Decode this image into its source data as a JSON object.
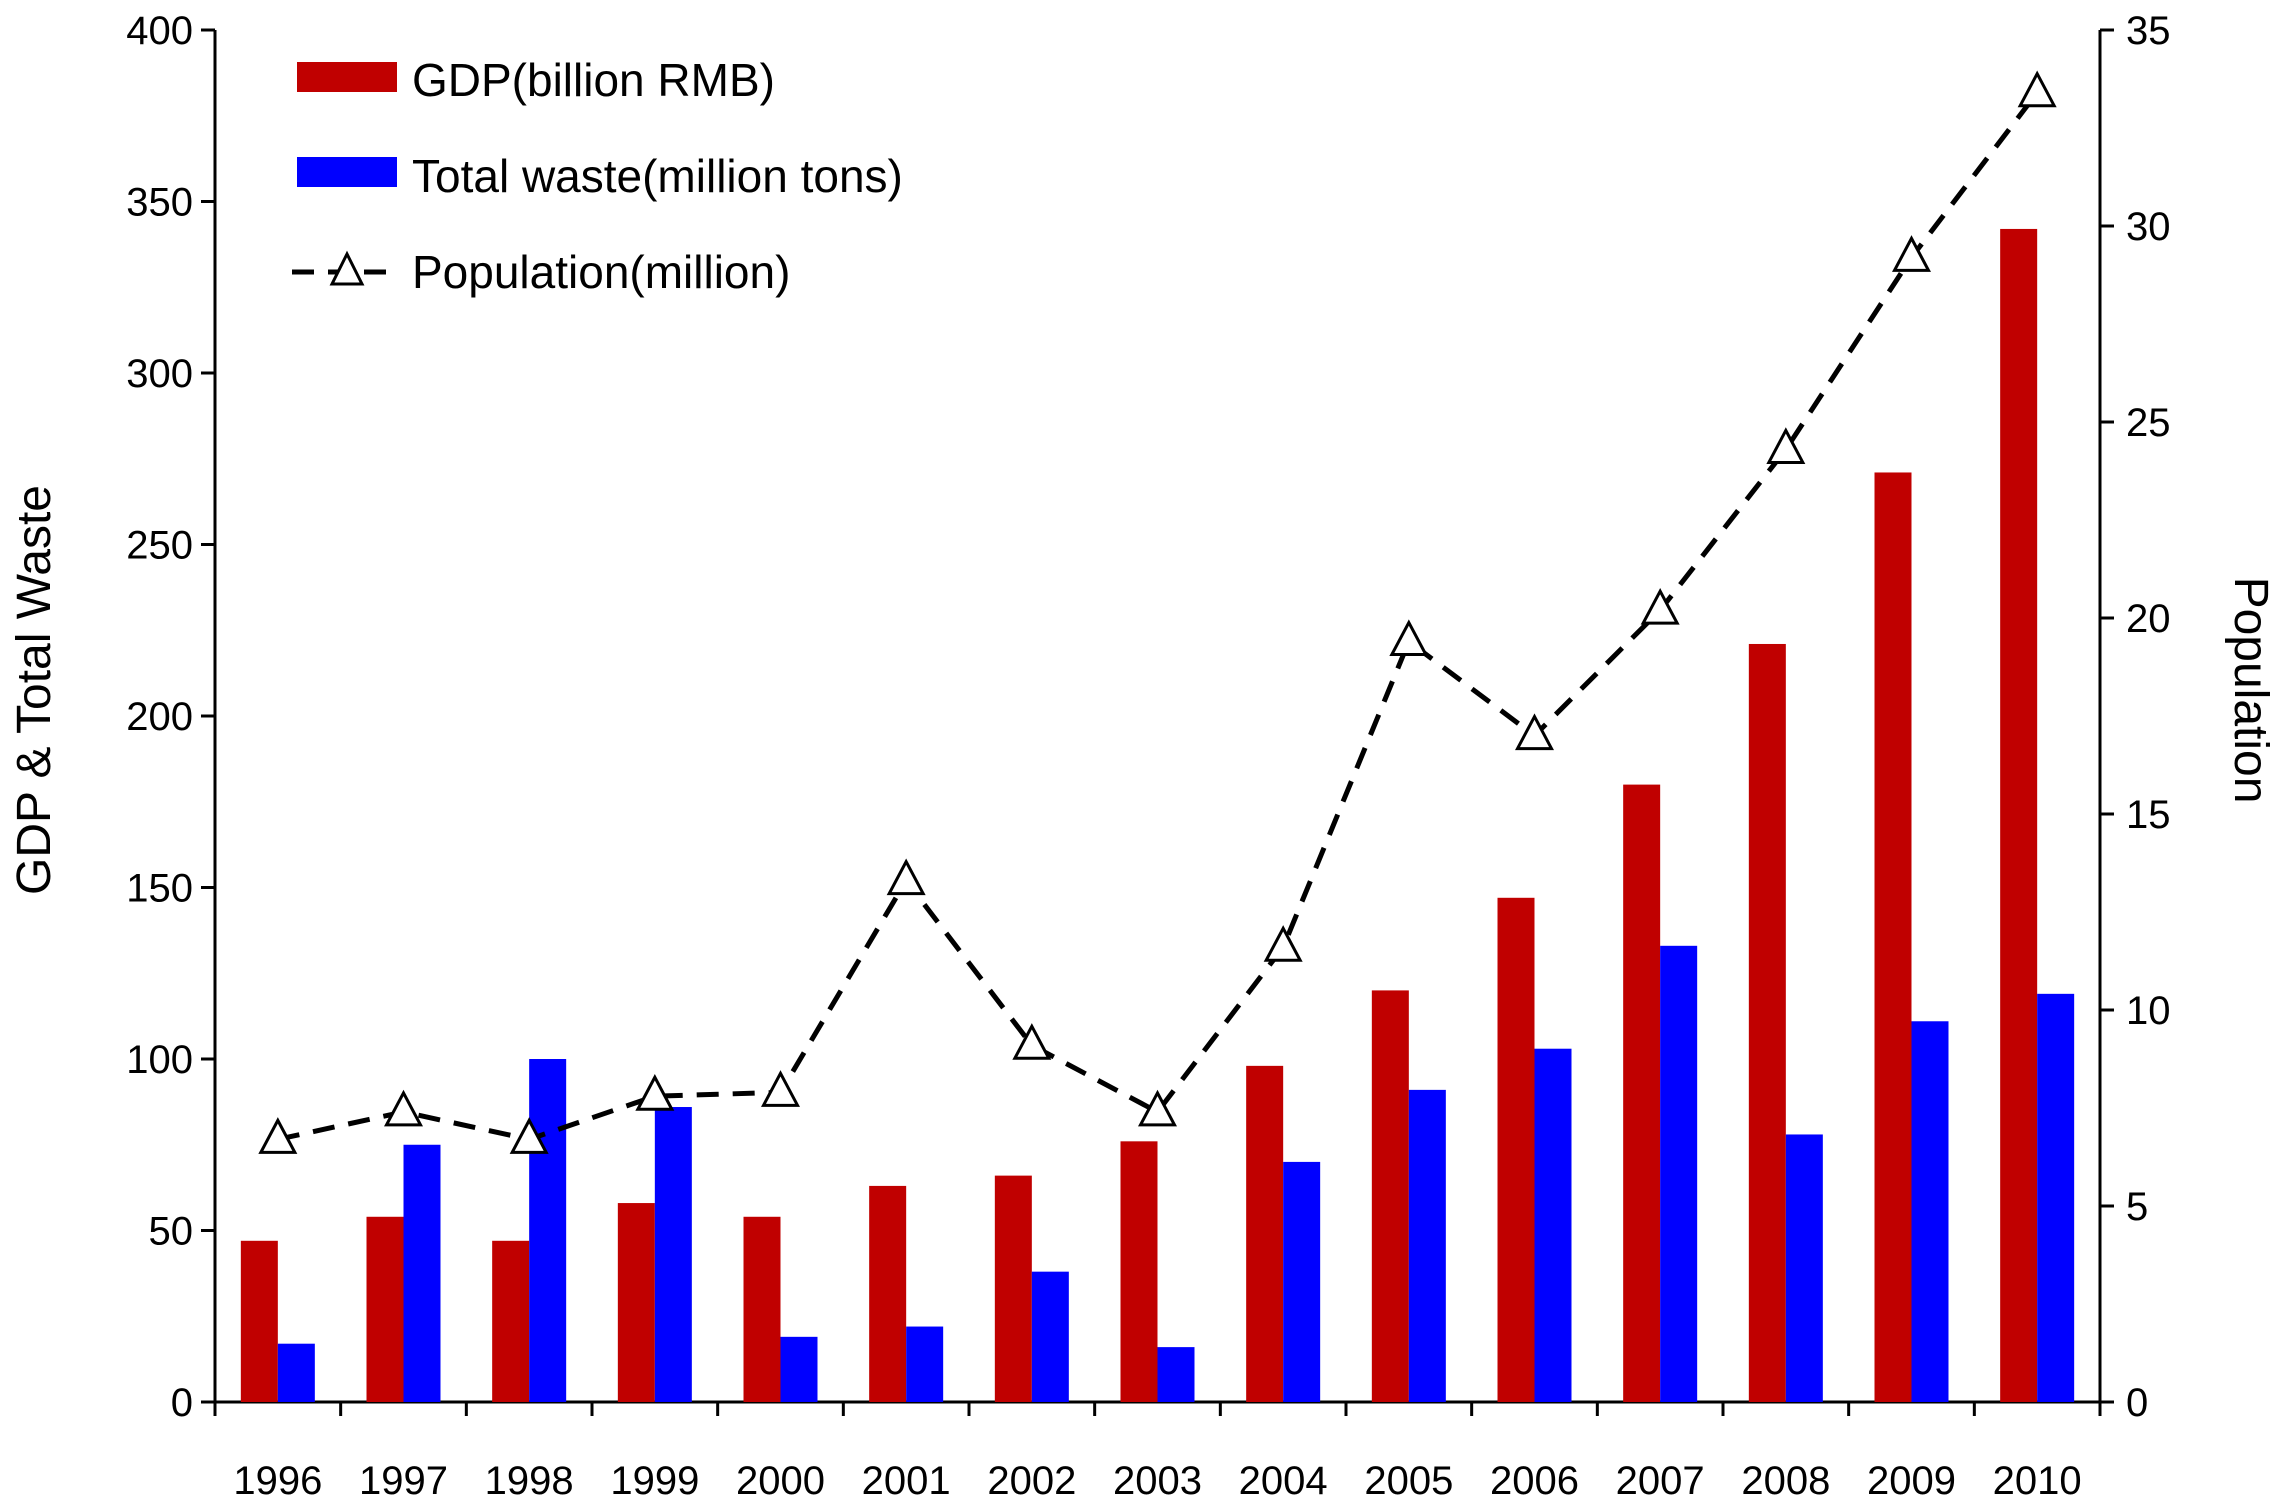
{
  "chart_data": {
    "type": "bar",
    "title": "",
    "categories": [
      "1996",
      "1997",
      "1998",
      "1999",
      "2000",
      "2001",
      "2002",
      "2003",
      "2004",
      "2005",
      "2006",
      "2007",
      "2008",
      "2009",
      "2010"
    ],
    "series": [
      {
        "name": "GDP(billion RMB)",
        "kind": "bar",
        "axis": "left",
        "color": "#c00000",
        "values": [
          47,
          54,
          47,
          58,
          54,
          63,
          66,
          76,
          98,
          120,
          147,
          180,
          221,
          271,
          342
        ]
      },
      {
        "name": "Total waste(million tons)",
        "kind": "bar",
        "axis": "left",
        "color": "#0000ff",
        "values": [
          17,
          75,
          100,
          86,
          19,
          22,
          38,
          16,
          70,
          91,
          103,
          133,
          78,
          111,
          119
        ]
      },
      {
        "name": "Population(million)",
        "kind": "line",
        "axis": "right",
        "color": "#000000",
        "marker": "triangle-open",
        "dash": "dashed",
        "values": [
          6.7,
          7.4,
          6.7,
          7.8,
          7.9,
          13.3,
          9.1,
          7.4,
          11.6,
          19.4,
          17.0,
          20.2,
          24.3,
          29.2,
          33.4
        ]
      }
    ],
    "ylabel": "GDP & Total Waste",
    "ylim": [
      0,
      400
    ],
    "yticks": [
      "0",
      "50",
      "100",
      "150",
      "200",
      "250",
      "300",
      "350",
      "400"
    ],
    "y2label": "Population",
    "y2lim": [
      0,
      35
    ],
    "y2ticks": [
      "0",
      "5",
      "10",
      "15",
      "20",
      "25",
      "30",
      "35"
    ],
    "xlabel": "",
    "grid": false,
    "legend_position": "top-left"
  }
}
